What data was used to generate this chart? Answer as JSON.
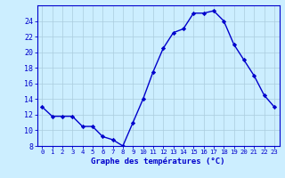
{
  "hours": [
    0,
    1,
    2,
    3,
    4,
    5,
    6,
    7,
    8,
    9,
    10,
    11,
    12,
    13,
    14,
    15,
    16,
    17,
    18,
    19,
    20,
    21,
    22,
    23
  ],
  "temperatures": [
    13.0,
    11.8,
    11.8,
    11.8,
    10.5,
    10.5,
    9.2,
    8.8,
    8.0,
    11.0,
    14.0,
    17.5,
    20.5,
    22.5,
    23.0,
    25.0,
    25.0,
    25.3,
    24.0,
    21.0,
    19.0,
    17.0,
    14.5,
    13.0
  ],
  "line_color": "#0000cc",
  "marker": "D",
  "marker_size": 2.2,
  "bg_color": "#cceeff",
  "grid_color": "#aaccdd",
  "xlabel": "Graphe des températures (°C)",
  "xlabel_color": "#0000cc",
  "tick_color": "#0000cc",
  "axis_color": "#0000cc",
  "ylim": [
    8,
    26
  ],
  "yticks": [
    8,
    10,
    12,
    14,
    16,
    18,
    20,
    22,
    24
  ],
  "xlim": [
    -0.5,
    23.5
  ],
  "linewidth": 1.0,
  "xlabel_fontsize": 6.5,
  "ytick_fontsize": 6.0,
  "xtick_fontsize": 5.2
}
